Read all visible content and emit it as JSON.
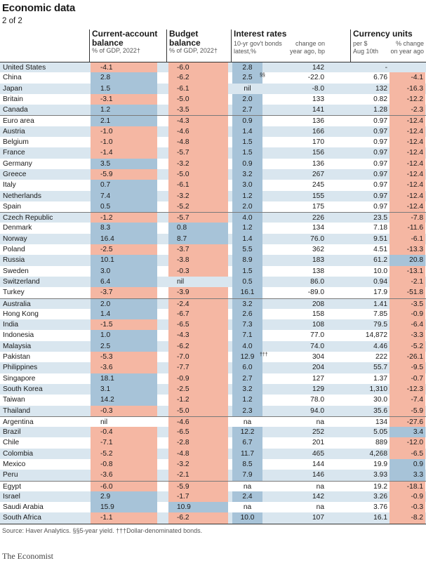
{
  "title": "Economic data",
  "subtitle": "2 of 2",
  "headers": {
    "current_account": {
      "main1": "Current-account",
      "main2": "balance",
      "sub": "% of GDP, 2022†"
    },
    "budget": {
      "main1": "Budget",
      "main2": "balance",
      "sub": "% of GDP, 2022†"
    },
    "interest": {
      "main": "Interest rates",
      "sub1": "10-yr gov't bonds",
      "sub2": "latest,%",
      "sub3": "change on",
      "sub4": "year ago, bp"
    },
    "currency": {
      "main": "Currency units",
      "sub1": "per $",
      "sub2": "Aug 10th",
      "sub3": "% change",
      "sub4": "on year ago"
    }
  },
  "colors": {
    "positive": "#a7c3d8",
    "negative": "#f5b7a3",
    "alt_row": "#d9e6ef"
  },
  "rows": [
    {
      "country": "United States",
      "ca": "-4.1",
      "bb": "-6.0",
      "ir": "2.8",
      "irc": "142",
      "cu": "-",
      "cuc": "",
      "g": 1
    },
    {
      "country": "China",
      "ca": "2.8",
      "bb": "-6.2",
      "ir": "2.5",
      "note": "§§",
      "irc": "-22.0",
      "cu": "6.76",
      "cuc": "-4.1",
      "g": 0
    },
    {
      "country": "Japan",
      "ca": "1.5",
      "bb": "-6.1",
      "ir": "nil",
      "irc": "-8.0",
      "cu": "132",
      "cuc": "-16.3",
      "g": 0
    },
    {
      "country": "Britain",
      "ca": "-3.1",
      "bb": "-5.0",
      "ir": "2.0",
      "irc": "133",
      "cu": "0.82",
      "cuc": "-12.2",
      "g": 0
    },
    {
      "country": "Canada",
      "ca": "1.2",
      "bb": "-3.5",
      "ir": "2.7",
      "irc": "141",
      "cu": "1.28",
      "cuc": "-2.3",
      "g": 0
    },
    {
      "country": "Euro area",
      "ca": "2.1",
      "bb": "-4.3",
      "ir": "0.9",
      "irc": "136",
      "cu": "0.97",
      "cuc": "-12.4",
      "g": 1
    },
    {
      "country": "Austria",
      "ca": "-1.0",
      "bb": "-4.6",
      "ir": "1.4",
      "irc": "166",
      "cu": "0.97",
      "cuc": "-12.4",
      "g": 0
    },
    {
      "country": "Belgium",
      "ca": "-1.0",
      "bb": "-4.8",
      "ir": "1.5",
      "irc": "170",
      "cu": "0.97",
      "cuc": "-12.4",
      "g": 0
    },
    {
      "country": "France",
      "ca": "-1.4",
      "bb": "-5.7",
      "ir": "1.5",
      "irc": "156",
      "cu": "0.97",
      "cuc": "-12.4",
      "g": 0
    },
    {
      "country": "Germany",
      "ca": "3.5",
      "bb": "-3.2",
      "ir": "0.9",
      "irc": "136",
      "cu": "0.97",
      "cuc": "-12.4",
      "g": 0
    },
    {
      "country": "Greece",
      "ca": "-5.9",
      "bb": "-5.0",
      "ir": "3.2",
      "irc": "267",
      "cu": "0.97",
      "cuc": "-12.4",
      "g": 0
    },
    {
      "country": "Italy",
      "ca": "0.7",
      "bb": "-6.1",
      "ir": "3.0",
      "irc": "245",
      "cu": "0.97",
      "cuc": "-12.4",
      "g": 0
    },
    {
      "country": "Netherlands",
      "ca": "7.4",
      "bb": "-3.2",
      "ir": "1.2",
      "irc": "155",
      "cu": "0.97",
      "cuc": "-12.4",
      "g": 0
    },
    {
      "country": "Spain",
      "ca": "0.5",
      "bb": "-5.2",
      "ir": "2.0",
      "irc": "175",
      "cu": "0.97",
      "cuc": "-12.4",
      "g": 0
    },
    {
      "country": "Czech Republic",
      "ca": "-1.2",
      "bb": "-5.7",
      "ir": "4.0",
      "irc": "226",
      "cu": "23.5",
      "cuc": "-7.8",
      "g": 1
    },
    {
      "country": "Denmark",
      "ca": "8.3",
      "bb": "0.8",
      "ir": "1.2",
      "irc": "134",
      "cu": "7.18",
      "cuc": "-11.6",
      "g": 0
    },
    {
      "country": "Norway",
      "ca": "16.4",
      "bb": "8.7",
      "ir": "1.4",
      "irc": "76.0",
      "cu": "9.51",
      "cuc": "-6.1",
      "g": 0
    },
    {
      "country": "Poland",
      "ca": "-2.5",
      "bb": "-3.7",
      "ir": "5.5",
      "irc": "362",
      "cu": "4.51",
      "cuc": "-13.3",
      "g": 0
    },
    {
      "country": "Russia",
      "ca": "10.1",
      "bb": "-3.8",
      "ir": "8.9",
      "irc": "183",
      "cu": "61.2",
      "cuc": "20.8",
      "g": 0
    },
    {
      "country": "Sweden",
      "ca": "3.0",
      "bb": "-0.3",
      "ir": "1.5",
      "irc": "138",
      "cu": "10.0",
      "cuc": "-13.1",
      "g": 0
    },
    {
      "country": "Switzerland",
      "ca": "6.4",
      "bb": "nil",
      "ir": "0.5",
      "irc": "86.0",
      "cu": "0.94",
      "cuc": "-2.1",
      "g": 0
    },
    {
      "country": "Turkey",
      "ca": "-3.7",
      "bb": "-3.9",
      "ir": "16.1",
      "irc": "-89.0",
      "cu": "17.9",
      "cuc": "-51.8",
      "g": 0
    },
    {
      "country": "Australia",
      "ca": "2.0",
      "bb": "-2.4",
      "ir": "3.2",
      "irc": "208",
      "cu": "1.41",
      "cuc": "-3.5",
      "g": 1
    },
    {
      "country": "Hong Kong",
      "ca": "1.4",
      "bb": "-6.7",
      "ir": "2.6",
      "irc": "158",
      "cu": "7.85",
      "cuc": "-0.9",
      "g": 0
    },
    {
      "country": "India",
      "ca": "-1.5",
      "bb": "-6.5",
      "ir": "7.3",
      "irc": "108",
      "cu": "79.5",
      "cuc": "-6.4",
      "g": 0
    },
    {
      "country": "Indonesia",
      "ca": "1.0",
      "bb": "-4.3",
      "ir": "7.1",
      "irc": "77.0",
      "cu": "14,872",
      "cuc": "-3.3",
      "g": 0
    },
    {
      "country": "Malaysia",
      "ca": "2.5",
      "bb": "-6.2",
      "ir": "4.0",
      "irc": "74.0",
      "cu": "4.46",
      "cuc": "-5.2",
      "g": 0
    },
    {
      "country": "Pakistan",
      "ca": "-5.3",
      "bb": "-7.0",
      "ir": "12.9",
      "note": "†††",
      "irc": "304",
      "cu": "222",
      "cuc": "-26.1",
      "g": 0
    },
    {
      "country": "Philippines",
      "ca": "-3.6",
      "bb": "-7.7",
      "ir": "6.0",
      "irc": "204",
      "cu": "55.7",
      "cuc": "-9.5",
      "g": 0
    },
    {
      "country": "Singapore",
      "ca": "18.1",
      "bb": "-0.9",
      "ir": "2.7",
      "irc": "127",
      "cu": "1.37",
      "cuc": "-0.7",
      "g": 0
    },
    {
      "country": "South Korea",
      "ca": "3.1",
      "bb": "-2.5",
      "ir": "3.2",
      "irc": "129",
      "cu": "1,310",
      "cuc": "-12.3",
      "g": 0
    },
    {
      "country": "Taiwan",
      "ca": "14.2",
      "bb": "-1.2",
      "ir": "1.2",
      "irc": "78.0",
      "cu": "30.0",
      "cuc": "-7.4",
      "g": 0
    },
    {
      "country": "Thailand",
      "ca": "-0.3",
      "bb": "-5.0",
      "ir": "2.3",
      "irc": "94.0",
      "cu": "35.6",
      "cuc": "-5.9",
      "g": 0
    },
    {
      "country": "Argentina",
      "ca": "nil",
      "bb": "-4.6",
      "ir": "na",
      "irc": "na",
      "cu": "134",
      "cuc": "-27.6",
      "g": 1
    },
    {
      "country": "Brazil",
      "ca": "-0.4",
      "bb": "-6.5",
      "ir": "12.2",
      "irc": "252",
      "cu": "5.05",
      "cuc": "3.4",
      "g": 0
    },
    {
      "country": "Chile",
      "ca": "-7.1",
      "bb": "-2.8",
      "ir": "6.7",
      "irc": "201",
      "cu": "889",
      "cuc": "-12.0",
      "g": 0
    },
    {
      "country": "Colombia",
      "ca": "-5.2",
      "bb": "-4.8",
      "ir": "11.7",
      "irc": "465",
      "cu": "4,268",
      "cuc": "-6.5",
      "g": 0
    },
    {
      "country": "Mexico",
      "ca": "-0.8",
      "bb": "-3.2",
      "ir": "8.5",
      "irc": "144",
      "cu": "19.9",
      "cuc": "0.9",
      "g": 0
    },
    {
      "country": "Peru",
      "ca": "-3.6",
      "bb": "-2.1",
      "ir": "7.9",
      "irc": "146",
      "cu": "3.93",
      "cuc": "3.3",
      "g": 0
    },
    {
      "country": "Egypt",
      "ca": "-6.0",
      "bb": "-5.9",
      "ir": "na",
      "irc": "na",
      "cu": "19.2",
      "cuc": "-18.1",
      "g": 1
    },
    {
      "country": "Israel",
      "ca": "2.9",
      "bb": "-1.7",
      "ir": "2.4",
      "irc": "142",
      "cu": "3.26",
      "cuc": "-0.9",
      "g": 0
    },
    {
      "country": "Saudi Arabia",
      "ca": "15.9",
      "bb": "10.9",
      "ir": "na",
      "irc": "na",
      "cu": "3.76",
      "cuc": "-0.3",
      "g": 0
    },
    {
      "country": "South Africa",
      "ca": "-1.1",
      "bb": "-6.2",
      "ir": "10.0",
      "irc": "107",
      "cu": "16.1",
      "cuc": "-8.2",
      "g": 0
    }
  ],
  "source": "Source: Haver Analytics. §§5-year yield. †††Dollar-denominated bonds.",
  "brand": "The Economist"
}
